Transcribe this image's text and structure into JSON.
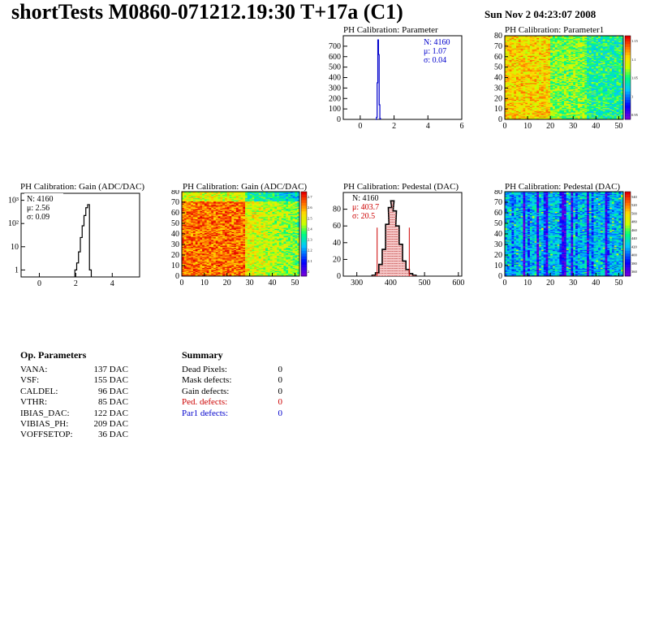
{
  "page": {
    "title": "shortTests M0860-071212.19:30 T+17a (C1)",
    "datestamp": "Sun Nov  2 04:23:07 2008"
  },
  "chart_data": [
    {
      "id": "ph_param_hist",
      "type": "histogram",
      "title": "PH Calibration: Parameter",
      "xlim": [
        -1,
        6
      ],
      "ylim": [
        0,
        800
      ],
      "xticks": [
        0,
        2,
        4,
        6
      ],
      "yticks": [
        0,
        100,
        200,
        300,
        400,
        500,
        600,
        700
      ],
      "bins": [
        {
          "x": 0.94,
          "y": 0
        },
        {
          "x": 0.98,
          "y": 20
        },
        {
          "x": 1.02,
          "y": 350
        },
        {
          "x": 1.06,
          "y": 760
        },
        {
          "x": 1.1,
          "y": 620
        },
        {
          "x": 1.14,
          "y": 140
        },
        {
          "x": 1.18,
          "y": 8
        }
      ],
      "stats": {
        "n": "N: 4160",
        "mean": "μ: 1.07",
        "sigma": "σ: 0.04"
      },
      "stats_color": "#0000cc",
      "line_color": "#0000cc"
    },
    {
      "id": "ph_param1_map",
      "type": "heatmap",
      "title": "PH Calibration: Parameter1",
      "xlim": [
        0,
        52
      ],
      "ylim": [
        0,
        80
      ],
      "xticks": [
        0,
        10,
        20,
        30,
        40,
        50
      ],
      "yticks": [
        0,
        10,
        20,
        30,
        40,
        50,
        60,
        70,
        80
      ],
      "palette_bias": 0.62,
      "colorbar_ticks": [
        "1.15",
        "1.1",
        "1.05",
        "1",
        "0.95"
      ]
    },
    {
      "id": "ph_gain_hist",
      "type": "histogram",
      "title": "PH Calibration: Gain (ADC/DAC)",
      "log_y": true,
      "xlim": [
        -1,
        5.5
      ],
      "ylim": [
        0.5,
        2000
      ],
      "xticks": [
        0,
        2,
        4
      ],
      "yticks": [
        {
          "v": 1,
          "label": "1"
        },
        {
          "v": 10,
          "label": "10"
        },
        {
          "v": 100,
          "label": "10²"
        },
        {
          "v": 1000,
          "label": "10³"
        }
      ],
      "bins": [
        {
          "x": 2.0,
          "y": 1
        },
        {
          "x": 2.1,
          "y": 2
        },
        {
          "x": 2.2,
          "y": 6
        },
        {
          "x": 2.3,
          "y": 25
        },
        {
          "x": 2.4,
          "y": 80
        },
        {
          "x": 2.5,
          "y": 220
        },
        {
          "x": 2.6,
          "y": 480
        },
        {
          "x": 2.7,
          "y": 650
        },
        {
          "x": 2.8,
          "y": 1
        }
      ],
      "stats": {
        "n": "N: 4160",
        "mean": "μ: 2.56",
        "sigma": "σ: 0.09"
      },
      "stats_color": "#000000",
      "line_color": "#000000"
    },
    {
      "id": "ph_gain_map",
      "type": "heatmap",
      "title": "PH Calibration: Gain (ADC/DAC)",
      "xlim": [
        0,
        52
      ],
      "ylim": [
        0,
        80
      ],
      "xticks": [
        0,
        10,
        20,
        30,
        40,
        50
      ],
      "yticks": [
        0,
        10,
        20,
        30,
        40,
        50,
        60,
        70,
        80
      ],
      "palette_bias": 0.82,
      "colorbar_ticks": [
        "2.7",
        "2.6",
        "2.5",
        "2.4",
        "2.3",
        "2.2",
        "2.1",
        "2"
      ]
    },
    {
      "id": "ph_pedestal_hist",
      "type": "histogram",
      "title": "PH Calibration: Pedestal (DAC)",
      "xlim": [
        260,
        610
      ],
      "ylim": [
        0,
        100
      ],
      "xticks": [
        300,
        400,
        500,
        600
      ],
      "yticks": [
        0,
        20,
        40,
        60,
        80
      ],
      "bins": [
        {
          "x": 350,
          "y": 1
        },
        {
          "x": 360,
          "y": 4
        },
        {
          "x": 370,
          "y": 14
        },
        {
          "x": 380,
          "y": 32
        },
        {
          "x": 390,
          "y": 62
        },
        {
          "x": 398,
          "y": 82
        },
        {
          "x": 405,
          "y": 90
        },
        {
          "x": 412,
          "y": 78
        },
        {
          "x": 420,
          "y": 60
        },
        {
          "x": 430,
          "y": 38
        },
        {
          "x": 440,
          "y": 18
        },
        {
          "x": 450,
          "y": 8
        },
        {
          "x": 460,
          "y": 3
        },
        {
          "x": 470,
          "y": 1
        }
      ],
      "cut_lines": [
        360,
        455
      ],
      "stats": {
        "n": "N: 4160",
        "mean": "μ: 403.7",
        "sigma": "σ: 20.5"
      },
      "stats_color": "#cc0000",
      "line_color": "#000000"
    },
    {
      "id": "ph_pedestal_map",
      "type": "heatmap",
      "title": "PH Calibration: Pedestal (DAC)",
      "xlim": [
        0,
        52
      ],
      "ylim": [
        0,
        80
      ],
      "xticks": [
        0,
        10,
        20,
        30,
        40,
        50
      ],
      "yticks": [
        0,
        10,
        20,
        30,
        40,
        50,
        60,
        70,
        80
      ],
      "palette_bias": 0.35,
      "colorbar_ticks": [
        "540",
        "520",
        "500",
        "480",
        "460",
        "440",
        "420",
        "400",
        "380",
        "360"
      ]
    }
  ],
  "op_parameters": {
    "heading": "Op. Parameters",
    "rows": [
      {
        "name": "VANA:",
        "value": "137 DAC"
      },
      {
        "name": "VSF:",
        "value": "155 DAC"
      },
      {
        "name": "CALDEL:",
        "value": "96 DAC"
      },
      {
        "name": "VTHR:",
        "value": "85 DAC"
      },
      {
        "name": "IBIAS_DAC:",
        "value": "122 DAC"
      },
      {
        "name": "VIBIAS_PH:",
        "value": "209 DAC"
      },
      {
        "name": "VOFFSETOP:",
        "value": "36 DAC"
      }
    ]
  },
  "summary": {
    "heading": "Summary",
    "rows": [
      {
        "name": "Dead Pixels:",
        "value": "0",
        "color": "#000000"
      },
      {
        "name": "Mask defects:",
        "value": "0",
        "color": "#000000"
      },
      {
        "name": "Gain defects:",
        "value": "0",
        "color": "#000000"
      },
      {
        "name": "Ped. defects:",
        "value": "0",
        "color": "#cc0000"
      },
      {
        "name": "Par1 defects:",
        "value": "0",
        "color": "#0000cc"
      }
    ]
  }
}
